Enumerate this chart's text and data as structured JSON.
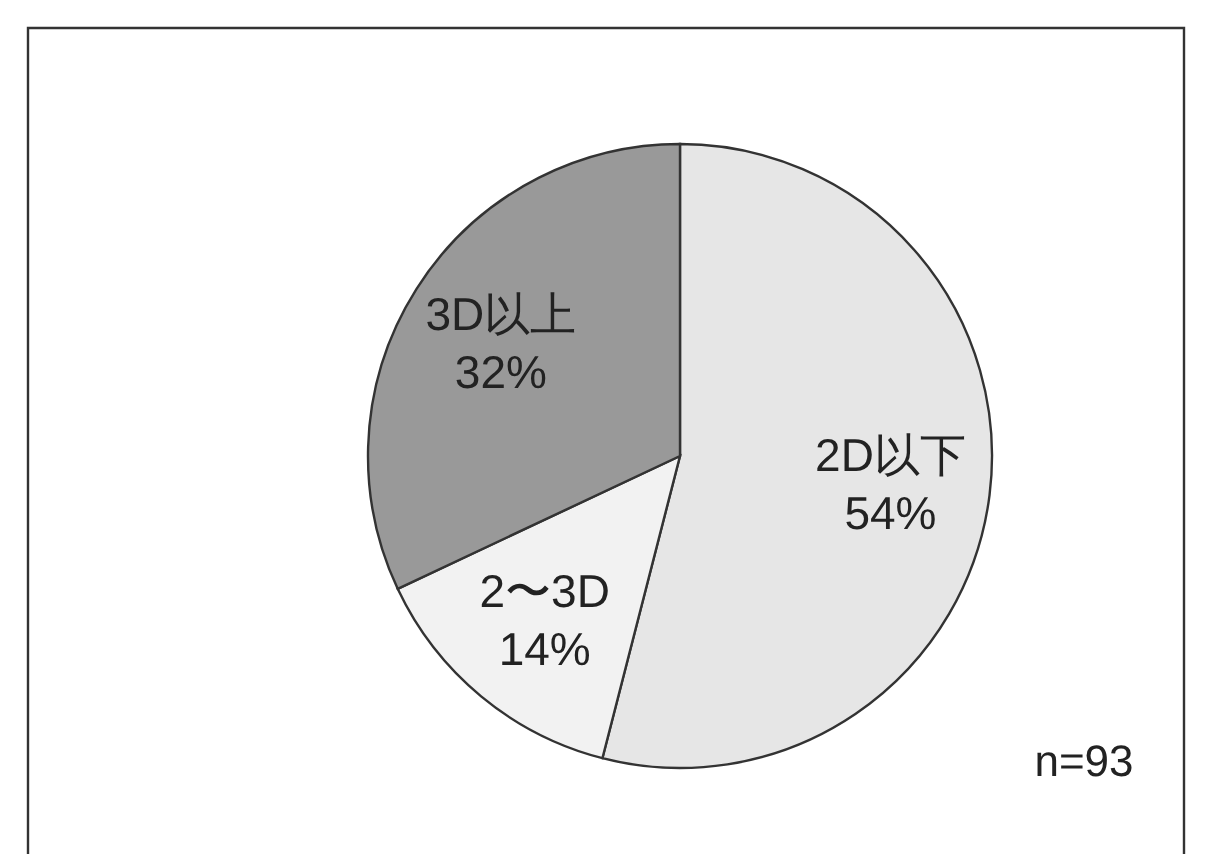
{
  "chart_data": {
    "type": "pie",
    "categories": [
      "2D以下",
      "2〜3D",
      "3D以上"
    ],
    "values": [
      54,
      14,
      32
    ],
    "value_labels": [
      "54%",
      "14%",
      "32%"
    ],
    "colors": [
      "#e6e6e6",
      "#f2f2f2",
      "#999999"
    ],
    "annotations": [
      "n=93"
    ]
  }
}
